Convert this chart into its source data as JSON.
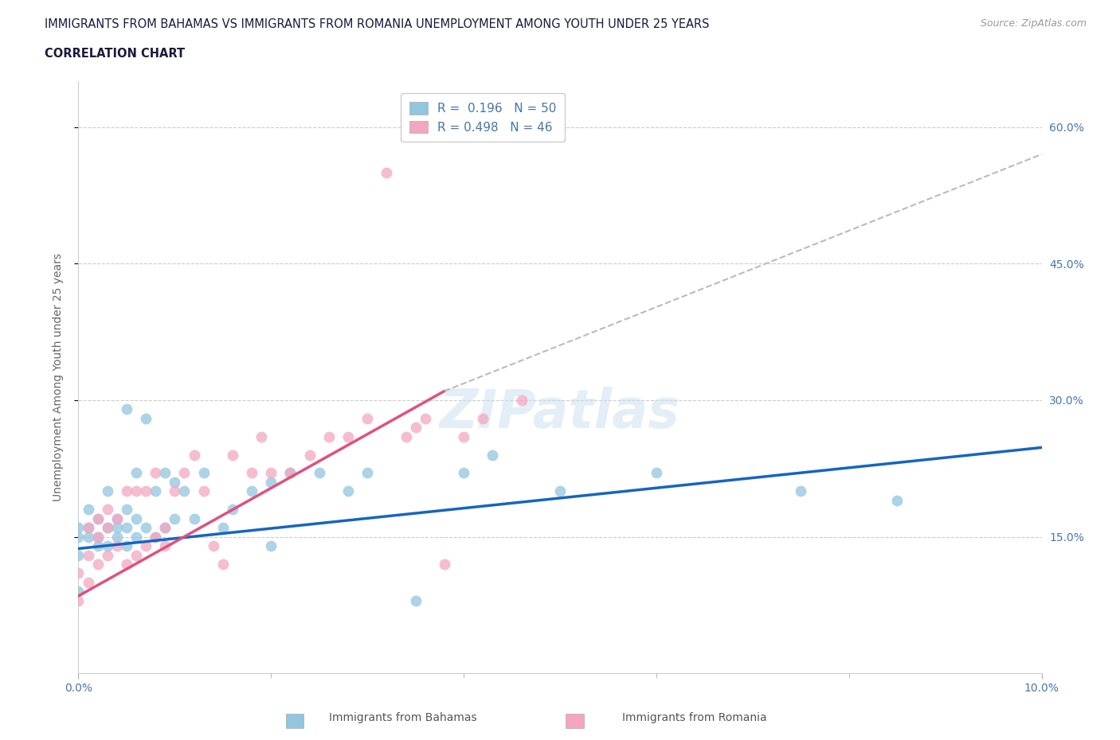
{
  "title_line1": "IMMIGRANTS FROM BAHAMAS VS IMMIGRANTS FROM ROMANIA UNEMPLOYMENT AMONG YOUTH UNDER 25 YEARS",
  "title_line2": "CORRELATION CHART",
  "source_text": "Source: ZipAtlas.com",
  "ylabel": "Unemployment Among Youth under 25 years",
  "xlim": [
    0.0,
    0.1
  ],
  "ylim": [
    0.0,
    0.65
  ],
  "yticks": [
    0.15,
    0.3,
    0.45,
    0.6
  ],
  "ytick_labels": [
    "15.0%",
    "30.0%",
    "45.0%",
    "60.0%"
  ],
  "watermark": "ZIPatlas",
  "legend_r_bahamas": "0.196",
  "legend_n_bahamas": "50",
  "legend_r_romania": "0.498",
  "legend_n_romania": "46",
  "color_bahamas": "#92C5DE",
  "color_romania": "#F4A6C0",
  "line_color_bahamas": "#1565C0",
  "line_color_romania": "#E05080",
  "axis_color": "#4477AA",
  "background_color": "#ffffff",
  "bahamas_x": [
    0.0,
    0.0,
    0.0,
    0.0,
    0.001,
    0.001,
    0.001,
    0.002,
    0.002,
    0.002,
    0.003,
    0.003,
    0.003,
    0.004,
    0.004,
    0.004,
    0.005,
    0.005,
    0.005,
    0.005,
    0.006,
    0.006,
    0.006,
    0.007,
    0.007,
    0.008,
    0.008,
    0.009,
    0.009,
    0.01,
    0.01,
    0.011,
    0.012,
    0.013,
    0.015,
    0.016,
    0.018,
    0.02,
    0.022,
    0.025,
    0.028,
    0.03,
    0.035,
    0.04,
    0.043,
    0.05,
    0.06,
    0.075,
    0.085,
    0.02
  ],
  "bahamas_y": [
    0.13,
    0.15,
    0.16,
    0.09,
    0.15,
    0.16,
    0.18,
    0.15,
    0.17,
    0.14,
    0.16,
    0.14,
    0.2,
    0.15,
    0.17,
    0.16,
    0.14,
    0.16,
    0.18,
    0.29,
    0.15,
    0.17,
    0.22,
    0.16,
    0.28,
    0.15,
    0.2,
    0.16,
    0.22,
    0.17,
    0.21,
    0.2,
    0.17,
    0.22,
    0.16,
    0.18,
    0.2,
    0.21,
    0.22,
    0.22,
    0.2,
    0.22,
    0.08,
    0.22,
    0.24,
    0.2,
    0.22,
    0.2,
    0.19,
    0.14
  ],
  "romania_x": [
    0.0,
    0.0,
    0.001,
    0.001,
    0.001,
    0.002,
    0.002,
    0.002,
    0.003,
    0.003,
    0.003,
    0.004,
    0.004,
    0.005,
    0.005,
    0.006,
    0.006,
    0.007,
    0.007,
    0.008,
    0.008,
    0.009,
    0.009,
    0.01,
    0.011,
    0.012,
    0.013,
    0.014,
    0.015,
    0.016,
    0.018,
    0.019,
    0.02,
    0.022,
    0.024,
    0.026,
    0.028,
    0.03,
    0.032,
    0.034,
    0.035,
    0.036,
    0.038,
    0.04,
    0.042,
    0.046
  ],
  "romania_y": [
    0.08,
    0.11,
    0.1,
    0.13,
    0.16,
    0.12,
    0.15,
    0.17,
    0.13,
    0.16,
    0.18,
    0.14,
    0.17,
    0.12,
    0.2,
    0.13,
    0.2,
    0.14,
    0.2,
    0.15,
    0.22,
    0.16,
    0.14,
    0.2,
    0.22,
    0.24,
    0.2,
    0.14,
    0.12,
    0.24,
    0.22,
    0.26,
    0.22,
    0.22,
    0.24,
    0.26,
    0.26,
    0.28,
    0.55,
    0.26,
    0.27,
    0.28,
    0.12,
    0.26,
    0.28,
    0.3
  ],
  "line_bahamas_x0": 0.0,
  "line_bahamas_x1": 0.1,
  "line_bahamas_y0": 0.137,
  "line_bahamas_y1": 0.248,
  "line_romania_solid_x0": 0.0,
  "line_romania_solid_x1": 0.038,
  "line_romania_solid_y0": 0.085,
  "line_romania_solid_y1": 0.31,
  "line_romania_dash_x0": 0.038,
  "line_romania_dash_x1": 0.1,
  "line_romania_dash_y0": 0.31,
  "line_romania_dash_y1": 0.57
}
